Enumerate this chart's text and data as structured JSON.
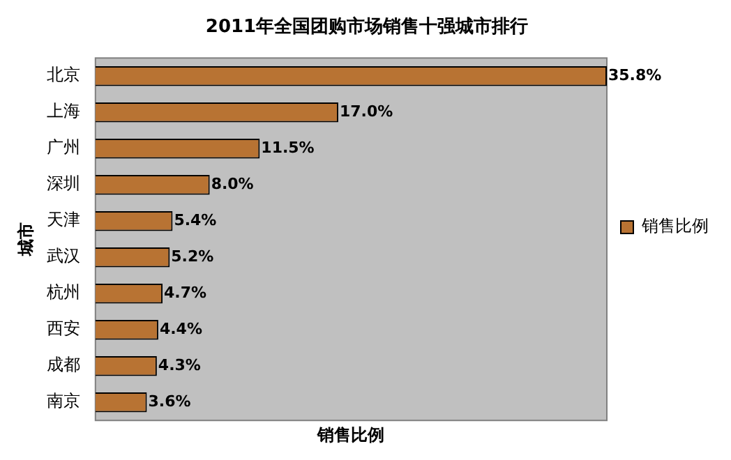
{
  "chart_data": {
    "type": "bar",
    "orientation": "horizontal",
    "title": "2011年全国团购市场销售十强城市排行",
    "xlabel": "销售比例",
    "ylabel": "城市",
    "categories": [
      "北京",
      "上海",
      "广州",
      "深圳",
      "天津",
      "武汉",
      "杭州",
      "西安",
      "成都",
      "南京"
    ],
    "series": [
      {
        "name": "销售比例",
        "color": "#b87333",
        "values": [
          35.8,
          17.0,
          11.5,
          8.0,
          5.4,
          5.2,
          4.7,
          4.4,
          4.3,
          3.6
        ],
        "value_labels": [
          "35.8%",
          "17.0%",
          "11.5%",
          "8.0%",
          "5.4%",
          "5.2%",
          "4.7%",
          "4.4%",
          "4.3%",
          "3.6%"
        ]
      }
    ],
    "legend": "right",
    "grid": false
  }
}
